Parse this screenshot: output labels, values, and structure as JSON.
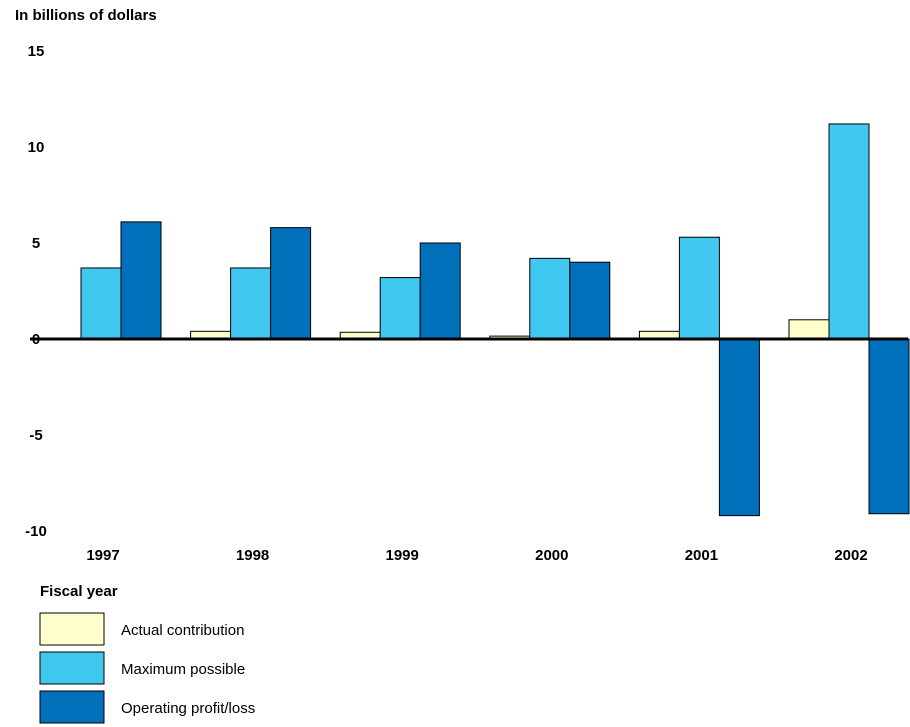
{
  "chart_data": {
    "type": "bar",
    "ylabel": "In billions of dollars",
    "xlabel": "Fiscal year",
    "categories": [
      "1997",
      "1998",
      "1999",
      "2000",
      "2001",
      "2002"
    ],
    "series": [
      {
        "name": "Actual contribution",
        "color": "#FFFFCC",
        "values": [
          0,
          0.4,
          0.35,
          0.15,
          0.4,
          1.0
        ]
      },
      {
        "name": "Maximum possible",
        "color": "#40C8F0",
        "values": [
          3.7,
          3.7,
          3.2,
          4.2,
          5.3,
          11.2
        ]
      },
      {
        "name": "Operating profit/loss",
        "color": "#0070BB",
        "values": [
          6.1,
          5.8,
          5.0,
          4.0,
          -9.2,
          -9.1
        ]
      }
    ],
    "ylim": [
      -10,
      15
    ],
    "yticks": [
      "15",
      "10",
      "5",
      "0",
      "-5",
      "-10"
    ],
    "grid": false,
    "legend_position": "bottom-left"
  }
}
